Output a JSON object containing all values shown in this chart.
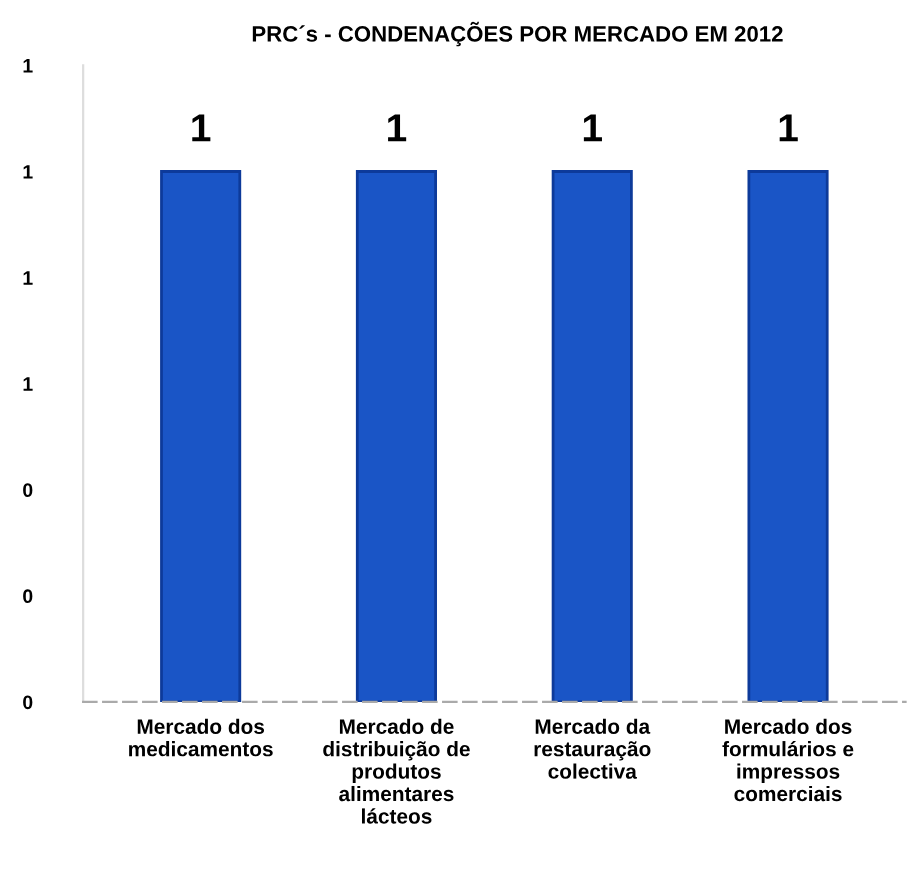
{
  "chart_data": {
    "type": "bar",
    "title": "PRC´s - CONDENAÇÕES POR MERCADO EM 2012",
    "categories": [
      "Mercado dos\nmedicamentos",
      "Mercado de\ndistribuição de\nprodutos\nalimentares\nlácteos",
      "Mercado da\nrestauração\ncolectiva",
      "Mercado dos\nformulários e\nimpressos\ncomerciais"
    ],
    "values": [
      1,
      1,
      1,
      1
    ],
    "color": "#1a55c6",
    "data_labels": true,
    "grid": false,
    "ylim": [
      0,
      1.2
    ],
    "yticks": [
      {
        "value": 0,
        "label": "0"
      },
      {
        "value": 0.2,
        "label": "0"
      },
      {
        "value": 0.4,
        "label": "0"
      },
      {
        "value": 0.6,
        "label": "1"
      },
      {
        "value": 0.8,
        "label": "1"
      },
      {
        "value": 1.0,
        "label": "1"
      },
      {
        "value": 1.2,
        "label": "1"
      }
    ]
  }
}
